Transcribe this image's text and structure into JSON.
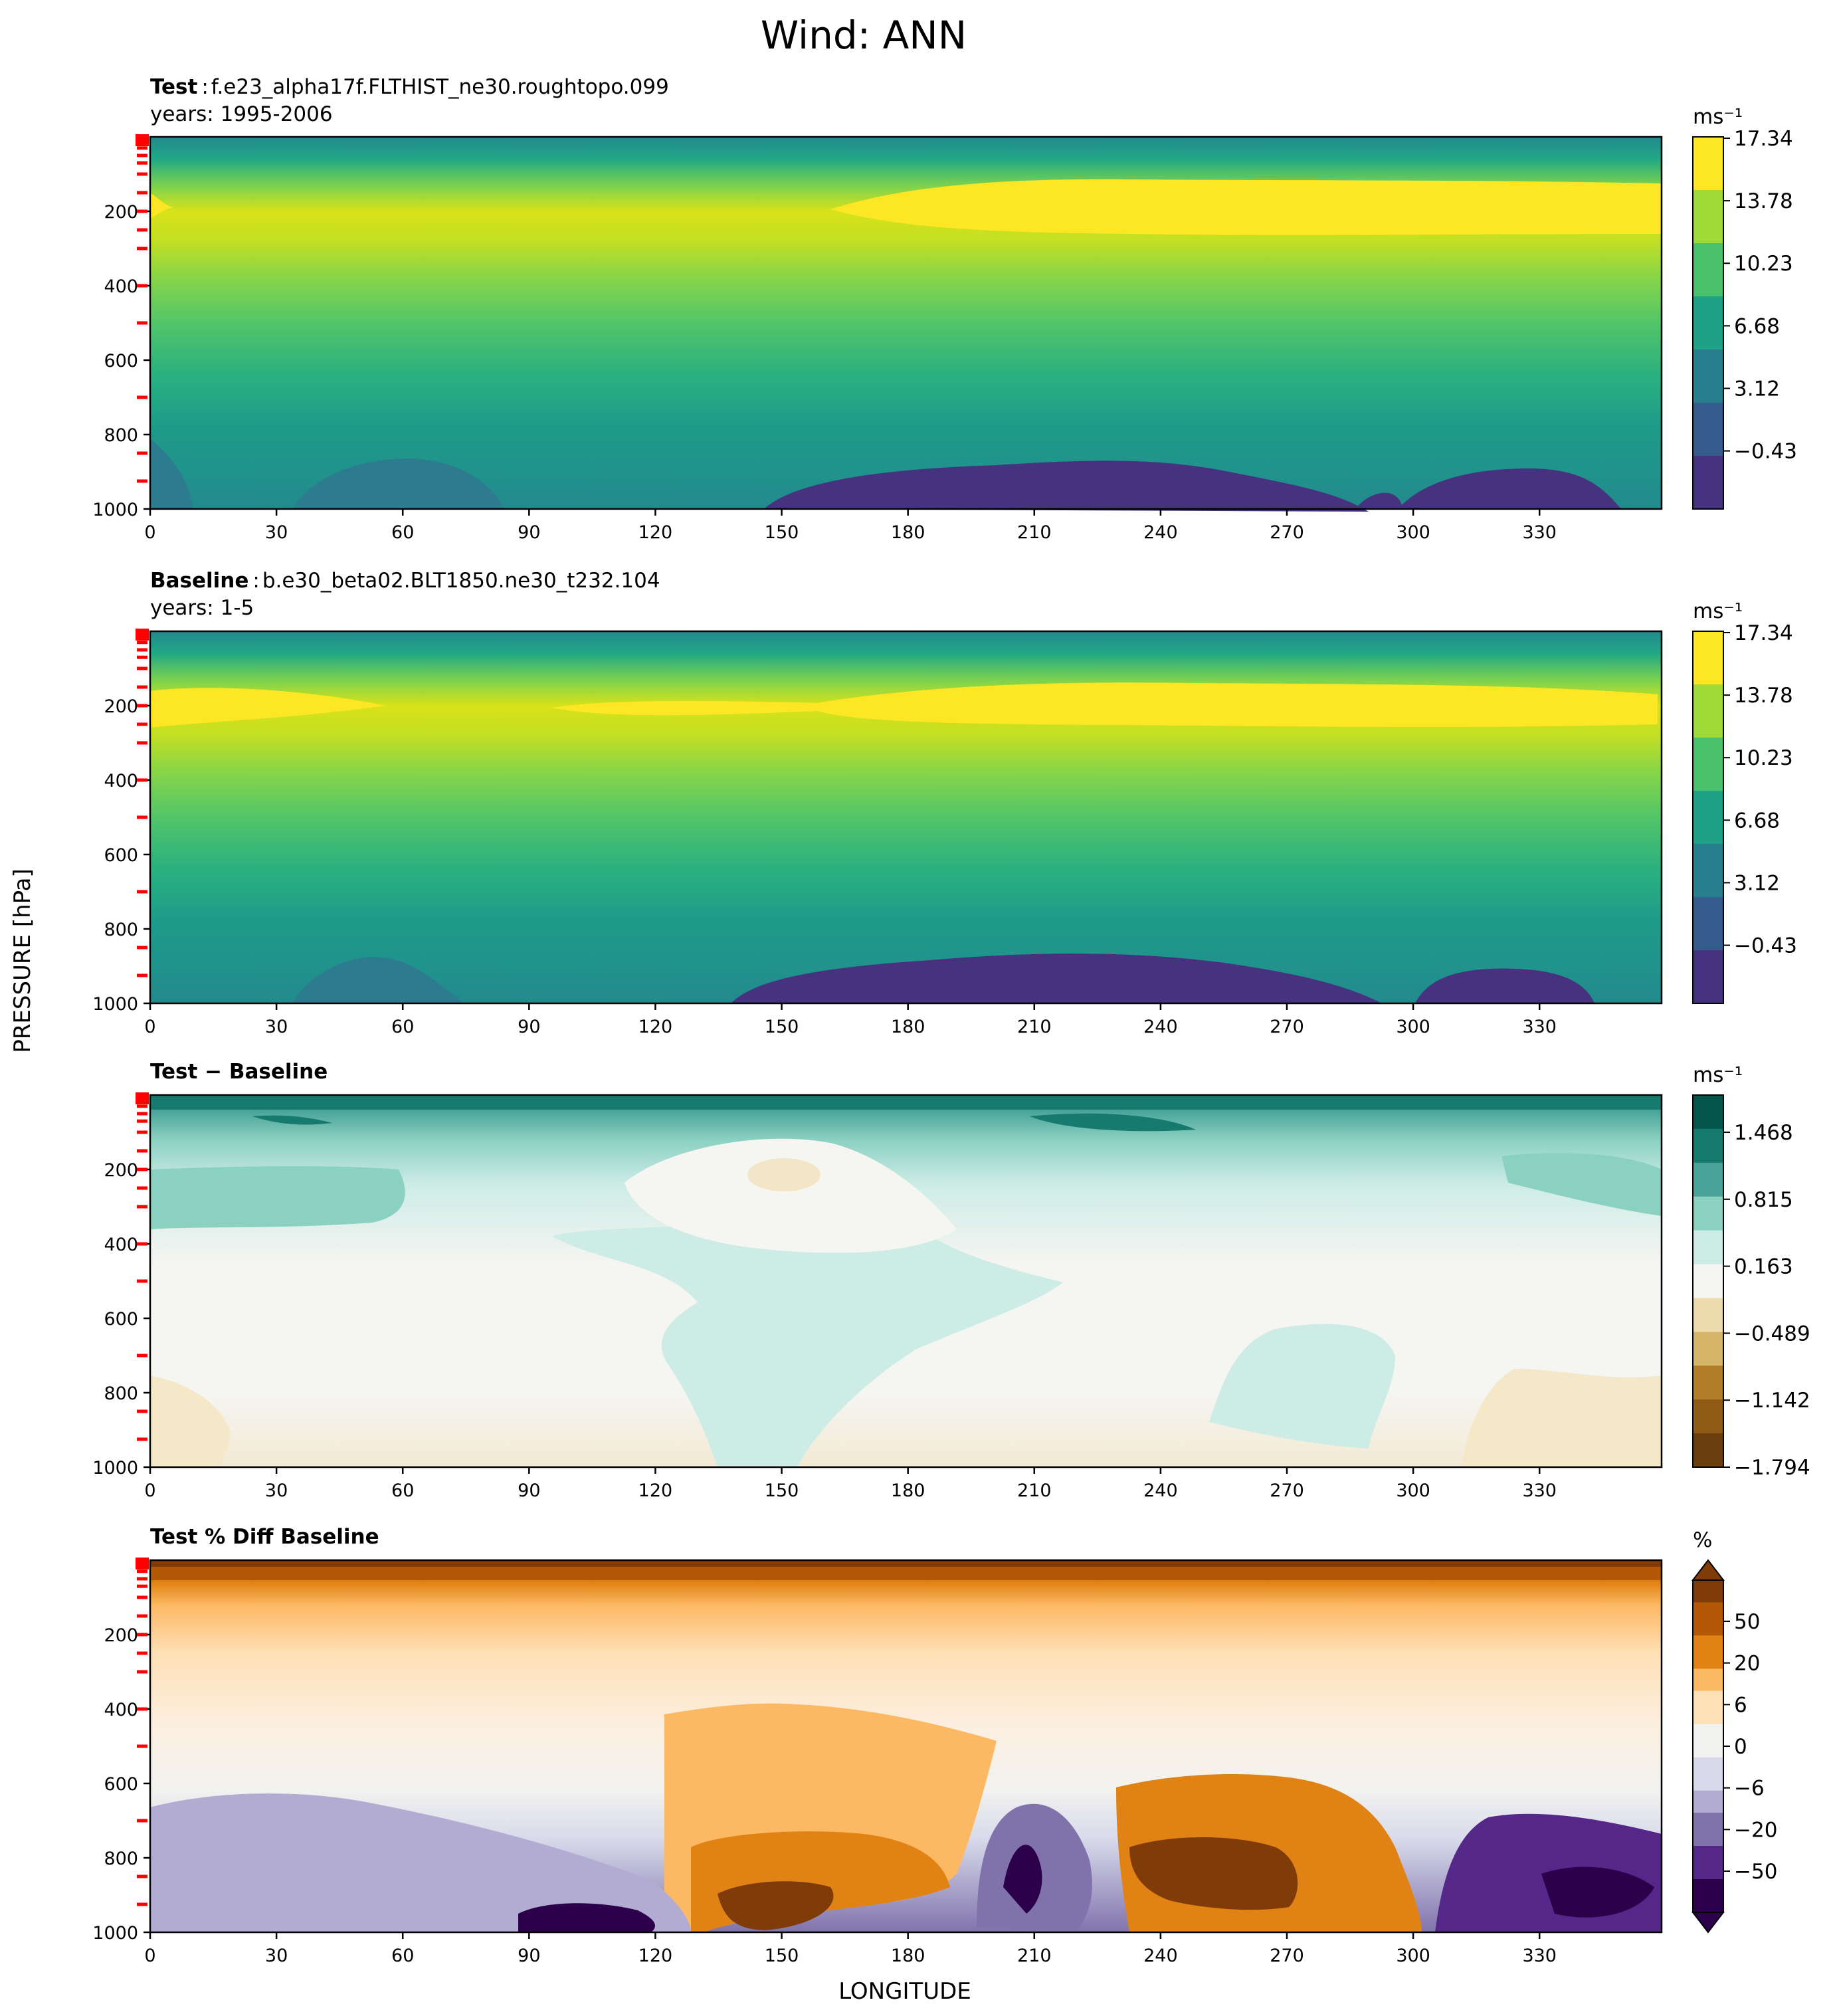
{
  "figure": {
    "title": "Wind: ANN",
    "ylabel": "PRESSURE [hPa]",
    "xlabel": "LONGITUDE"
  },
  "colors": {
    "viridis": [
      "#46327e",
      "#365c8d",
      "#277f8e",
      "#1fa187",
      "#4ac16d",
      "#a0da39",
      "#fde725"
    ],
    "bluegreen_div": [
      "#6b3f0d",
      "#8e5a16",
      "#b47d2c",
      "#d5b56a",
      "#eedbad",
      "#f5f5f2",
      "#cdece6",
      "#8bd1c2",
      "#48a297",
      "#167a6f",
      "#03554a"
    ],
    "brown_purple_div": [
      "#2d004b",
      "#542788",
      "#8073ac",
      "#b2abd2",
      "#d8daeb",
      "#f2f2f0",
      "#fee0b6",
      "#fdb863",
      "#e08214",
      "#b35806",
      "#7f3b08"
    ],
    "tick_marker": "#ff0000"
  },
  "axes": {
    "x_ticks": [
      "0",
      "30",
      "60",
      "90",
      "120",
      "150",
      "180",
      "210",
      "240",
      "270",
      "300",
      "330"
    ],
    "y_ticks": [
      "200",
      "400",
      "600",
      "800",
      "1000"
    ]
  },
  "panels": [
    {
      "label_bold": "Test",
      "sep": ":",
      "label_rest": "f.e23_alpha17f.FLTHIST_ne30.roughtopo.099",
      "years": "years: 1995-2006",
      "cbar_unit": "ms⁻¹",
      "cbar_ticks": [
        "17.34",
        "13.78",
        "10.23",
        "6.68",
        "3.12",
        "−0.43"
      ]
    },
    {
      "label_bold": "Baseline",
      "sep": ":",
      "label_rest": "b.e30_beta02.BLT1850.ne30_t232.104",
      "years": "years: 1-5",
      "cbar_unit": "ms⁻¹",
      "cbar_ticks": [
        "17.34",
        "13.78",
        "10.23",
        "6.68",
        "3.12",
        "−0.43"
      ]
    },
    {
      "label_bold": "Test − Baseline",
      "cbar_unit": "ms⁻¹",
      "cbar_ticks": [
        "1.468",
        "0.815",
        "0.163",
        "−0.489",
        "−1.142",
        "−1.794"
      ]
    },
    {
      "label_bold": "Test % Diff Baseline",
      "cbar_unit": "%",
      "cbar_ticks": [
        "50",
        "20",
        "6",
        "0",
        "−6",
        "−20",
        "−50"
      ]
    }
  ],
  "chart_data": [
    {
      "type": "heatmap",
      "title": "Test : f.e23_alpha17f.FLTHIST_ne30.roughtopo.099",
      "subtitle": "years: 1995-2006",
      "x": [
        0,
        30,
        60,
        90,
        120,
        150,
        180,
        210,
        240,
        270,
        300,
        330
      ],
      "y": [
        1000,
        800,
        600,
        400,
        200
      ],
      "xlim": [
        0,
        359
      ],
      "ylim": [
        1000,
        0
      ],
      "yscale": "linear",
      "levels": [
        -0.43,
        3.12,
        6.68,
        10.23,
        13.78,
        17.34
      ],
      "units": "ms⁻¹",
      "description_values": {
        "jet_max_level_hPa": 200,
        "jet_max": 17.34,
        "surface_min": -0.43
      }
    },
    {
      "type": "heatmap",
      "title": "Baseline : b.e30_beta02.BLT1850.ne30_t232.104",
      "subtitle": "years: 1-5",
      "x": [
        0,
        30,
        60,
        90,
        120,
        150,
        180,
        210,
        240,
        270,
        300,
        330
      ],
      "y": [
        1000,
        800,
        600,
        400,
        200
      ],
      "xlim": [
        0,
        359
      ],
      "ylim": [
        1000,
        0
      ],
      "levels": [
        -0.43,
        3.12,
        6.68,
        10.23,
        13.78,
        17.34
      ],
      "units": "ms⁻¹"
    },
    {
      "type": "heatmap",
      "title": "Test − Baseline",
      "x": [
        0,
        30,
        60,
        90,
        120,
        150,
        180,
        210,
        240,
        270,
        300,
        330
      ],
      "y": [
        1000,
        800,
        600,
        400,
        200
      ],
      "xlim": [
        0,
        359
      ],
      "ylim": [
        1000,
        0
      ],
      "levels": [
        -1.794,
        -1.142,
        -0.489,
        0.163,
        0.815,
        1.468
      ],
      "units": "ms⁻¹"
    },
    {
      "type": "heatmap",
      "title": "Test % Diff Baseline",
      "x": [
        0,
        30,
        60,
        90,
        120,
        150,
        180,
        210,
        240,
        270,
        300,
        330
      ],
      "y": [
        1000,
        800,
        600,
        400,
        200
      ],
      "xlim": [
        0,
        359
      ],
      "ylim": [
        1000,
        0
      ],
      "levels": [
        -50,
        -20,
        -6,
        0,
        6,
        20,
        50
      ],
      "units": "%"
    }
  ]
}
